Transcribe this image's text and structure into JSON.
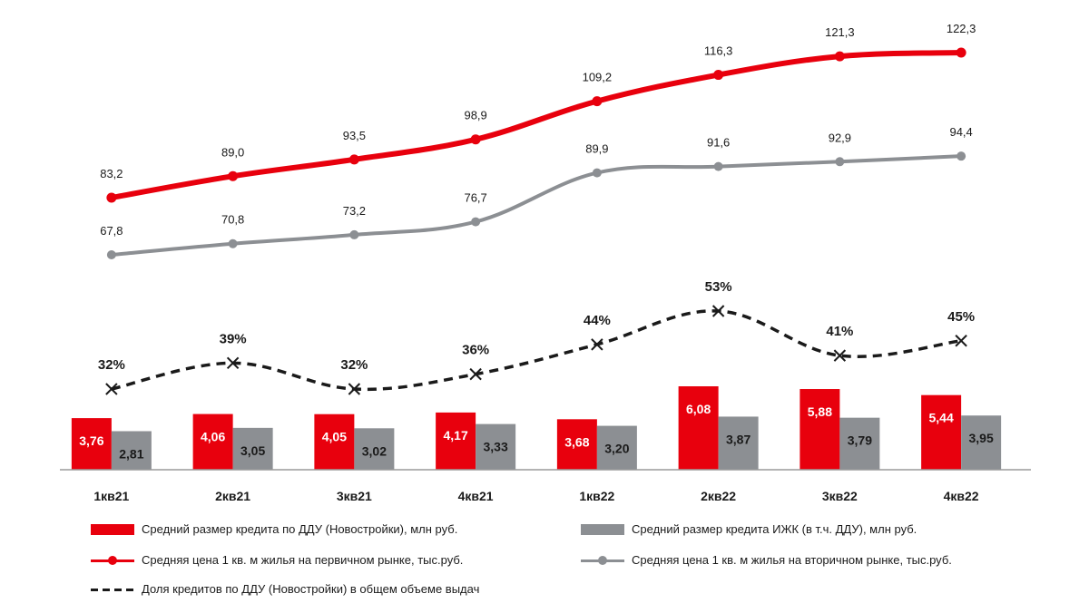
{
  "chart_data": {
    "type": "bar",
    "categories": [
      "1кв21",
      "2кв21",
      "3кв21",
      "4кв21",
      "1кв22",
      "2кв22",
      "3кв22",
      "4кв22"
    ],
    "series": [
      {
        "name": "Средний размер кредита по ДДУ (Новостройки), млн руб.",
        "kind": "bar",
        "color": "#e8000d",
        "values": [
          3.76,
          4.06,
          4.05,
          4.17,
          3.68,
          6.08,
          5.88,
          5.44
        ],
        "labels": [
          "3,76",
          "4,06",
          "4,05",
          "4,17",
          "3,68",
          "6,08",
          "5,88",
          "5,44"
        ]
      },
      {
        "name": "Средний размер кредита ИЖК (в т.ч. ДДУ), млн руб.",
        "kind": "bar",
        "color": "#8c8f93",
        "values": [
          2.81,
          3.05,
          3.02,
          3.33,
          3.2,
          3.87,
          3.79,
          3.95
        ],
        "labels": [
          "2,81",
          "3,05",
          "3,02",
          "3,33",
          "3,20",
          "3,87",
          "3,79",
          "3,95"
        ]
      },
      {
        "name": "Средняя цена 1 кв. м жилья на первичном рынке, тыс.руб.",
        "kind": "line",
        "color": "#e8000d",
        "values": [
          83.2,
          89.0,
          93.5,
          98.9,
          109.2,
          116.3,
          121.3,
          122.3
        ],
        "labels": [
          "83,2",
          "89,0",
          "93,5",
          "98,9",
          "109,2",
          "116,3",
          "121,3",
          "122,3"
        ]
      },
      {
        "name": "Средняя цена 1 кв. м жилья на вторичном рынке, тыс.руб.",
        "kind": "line",
        "color": "#8c8f93",
        "values": [
          67.8,
          70.8,
          73.2,
          76.7,
          89.9,
          91.6,
          92.9,
          94.4
        ],
        "labels": [
          "67,8",
          "70,8",
          "73,2",
          "76,7",
          "89,9",
          "91,6",
          "92,9",
          "94,4"
        ]
      },
      {
        "name": "Доля кредитов по ДДУ (Новостройки) в общем объеме выдач",
        "kind": "dashed-line",
        "color": "#1a1a1a",
        "values": [
          32,
          39,
          32,
          36,
          44,
          53,
          41,
          45
        ],
        "labels": [
          "32%",
          "39%",
          "32%",
          "36%",
          "44%",
          "53%",
          "41%",
          "45%"
        ]
      }
    ],
    "bar_ylim": [
      0,
      7
    ],
    "price_ylim": [
      60,
      125
    ],
    "share_ylim": [
      30,
      55
    ],
    "legend_position": "bottom"
  }
}
